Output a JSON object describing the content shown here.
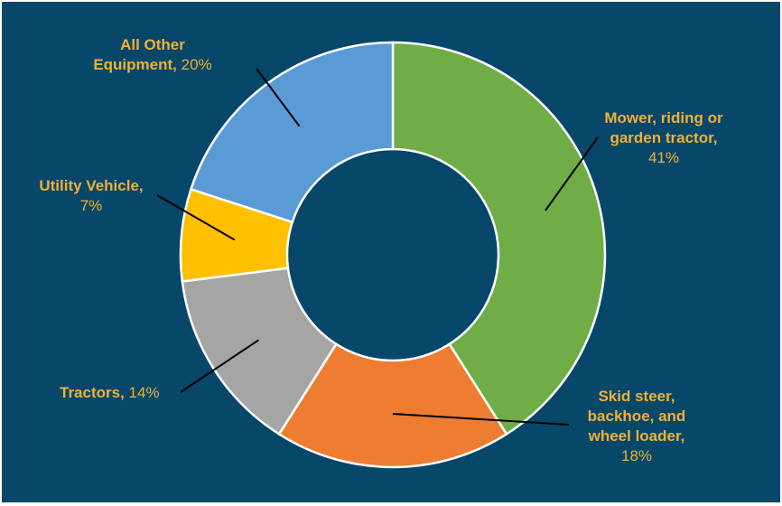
{
  "chart_data": {
    "type": "pie",
    "variant": "donut",
    "title": "",
    "legend": "none",
    "slices": [
      {
        "name_lines": [
          "Mower, riding or",
          "garden tractor,"
        ],
        "pct_label": "41%",
        "value": 41,
        "color": "#70ad47"
      },
      {
        "name_lines": [
          "Skid steer,",
          "backhoe, and",
          "wheel loader,"
        ],
        "pct_label": "18%",
        "value": 18,
        "color": "#ed7d31"
      },
      {
        "name_lines": [
          "Tractors,"
        ],
        "pct_label": "14%",
        "value": 14,
        "color": "#a5a5a5"
      },
      {
        "name_lines": [
          "Utility Vehicle,"
        ],
        "pct_label": "7%",
        "value": 7,
        "color": "#ffc000"
      },
      {
        "name_lines": [
          "All Other",
          "Equipment,"
        ],
        "pct_label": "20%",
        "value": 20,
        "color": "#5b9bd5"
      }
    ],
    "colors": {
      "background": "#06476a",
      "label_text": "#f2b035",
      "slice_border": "#ffffff",
      "leader_line": "#000000"
    }
  }
}
